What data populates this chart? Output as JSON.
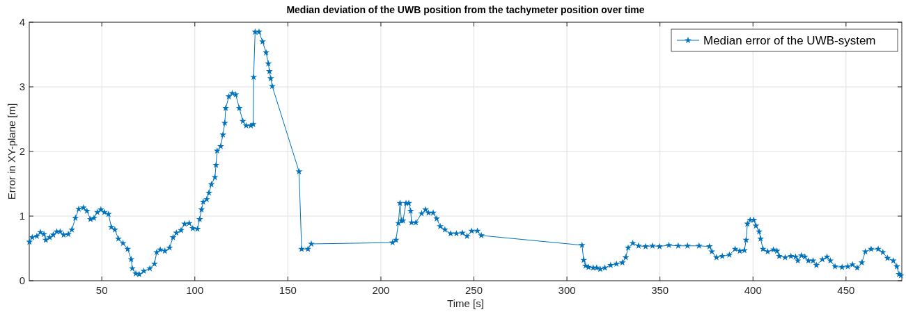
{
  "chart_data": {
    "type": "line",
    "title": "Median deviation of the UWB position from the tachymeter position over time",
    "xlabel": "Time [s]",
    "ylabel": "Error in XY-plane [m]",
    "xlim": [
      11,
      480
    ],
    "xticks": [
      50,
      100,
      150,
      200,
      250,
      300,
      350,
      400,
      450
    ],
    "ylim": [
      0,
      4
    ],
    "yticks": [
      0,
      1,
      2,
      3,
      4
    ],
    "grid": true,
    "legend": "top right",
    "marker": "star",
    "line_style": "solid",
    "series": [
      {
        "name": "Median error of the UWB-system",
        "color": "#0072bd",
        "x": [
          11.1,
          12.6,
          15.1,
          17,
          18.9,
          19.9,
          22,
          23.9,
          25.8,
          27.6,
          29.5,
          32,
          33.9,
          35.8,
          37.6,
          40.1,
          42,
          43.9,
          45.8,
          47.6,
          49.5,
          51.4,
          53.6,
          55.1,
          57,
          58.9,
          61.4,
          63.9,
          65.8,
          66.4,
          68.3,
          70.1,
          72.6,
          75.8,
          78.3,
          79.5,
          81.4,
          83.9,
          86.4,
          88.3,
          90.1,
          92.6,
          94.5,
          97,
          98.9,
          101.4,
          102.6,
          103.6,
          104.5,
          106.4,
          107.6,
          108.9,
          110.8,
          111.4,
          112,
          113.9,
          115.1,
          116.1,
          116.6,
          118.3,
          120.1,
          122,
          123.9,
          125.8,
          127.6,
          130.1,
          131.4,
          131.6,
          132.4,
          134.5,
          136.4,
          138.3,
          139.5,
          140.1,
          140.8,
          141.6,
          156,
          157.4,
          160.8,
          162.6,
          206.3,
          208.1,
          209.4,
          210.3,
          211,
          211.9,
          213.5,
          215,
          216,
          216.5,
          218.8,
          221.9,
          224,
          225.6,
          228.1,
          230,
          231.9,
          234.4,
          237.5,
          240.6,
          243.8,
          246.3,
          248.8,
          251.9,
          254,
          308.1,
          309,
          310,
          311.6,
          314.1,
          316,
          317.9,
          320.4,
          323.5,
          326.6,
          329.8,
          331.6,
          332.9,
          335.4,
          338.5,
          342.3,
          346,
          349.8,
          354.8,
          359.8,
          364.8,
          371,
          376.6,
          377.9,
          380.4,
          383.5,
          387.3,
          390.4,
          392.9,
          395.4,
          396.3,
          397,
          398.5,
          400.4,
          401.6,
          403.3,
          404.1,
          405.4,
          407.9,
          411,
          412.9,
          414.1,
          417.3,
          420.4,
          422.9,
          424.1,
          426,
          427.9,
          429.8,
          432.3,
          434.1,
          437.3,
          439.8,
          441.6,
          444.1,
          447.9,
          451,
          453.5,
          456,
          458.5,
          460.4,
          463.5,
          467.3,
          469.8,
          472.3,
          475.4,
          477.3,
          478.5,
          479.5
        ],
        "values": [
          0.6,
          0.67,
          0.69,
          0.75,
          0.72,
          0.63,
          0.67,
          0.71,
          0.76,
          0.76,
          0.71,
          0.72,
          0.79,
          0.97,
          1.11,
          1.13,
          1.08,
          0.95,
          0.97,
          1.06,
          1.1,
          1.06,
          1.03,
          0.83,
          0.79,
          0.65,
          0.58,
          0.49,
          0.33,
          0.19,
          0.11,
          0.1,
          0.15,
          0.19,
          0.26,
          0.44,
          0.48,
          0.46,
          0.51,
          0.67,
          0.74,
          0.78,
          0.88,
          0.89,
          0.81,
          0.8,
          0.95,
          1.1,
          1.22,
          1.26,
          1.36,
          1.49,
          1.6,
          1.79,
          2.01,
          2.08,
          2.26,
          2.44,
          2.67,
          2.85,
          2.9,
          2.88,
          2.67,
          2.47,
          2.4,
          2.4,
          2.42,
          3.15,
          3.85,
          3.85,
          3.7,
          3.53,
          3.36,
          3.24,
          3.13,
          3.01,
          1.69,
          0.49,
          0.49,
          0.57,
          0.59,
          0.63,
          0.89,
          1.2,
          0.93,
          0.93,
          1.2,
          1.2,
          1.08,
          0.9,
          0.9,
          1.04,
          1.1,
          1.05,
          1.05,
          0.96,
          0.84,
          0.79,
          0.73,
          0.73,
          0.74,
          0.69,
          0.77,
          0.77,
          0.7,
          0.55,
          0.32,
          0.23,
          0.21,
          0.2,
          0.2,
          0.18,
          0.2,
          0.24,
          0.26,
          0.28,
          0.36,
          0.51,
          0.58,
          0.54,
          0.53,
          0.54,
          0.53,
          0.55,
          0.54,
          0.54,
          0.54,
          0.53,
          0.45,
          0.36,
          0.38,
          0.4,
          0.49,
          0.46,
          0.47,
          0.63,
          0.88,
          0.94,
          0.94,
          0.85,
          0.76,
          0.65,
          0.49,
          0.45,
          0.48,
          0.46,
          0.38,
          0.36,
          0.38,
          0.37,
          0.31,
          0.39,
          0.37,
          0.31,
          0.31,
          0.24,
          0.33,
          0.37,
          0.31,
          0.22,
          0.21,
          0.22,
          0.25,
          0.2,
          0.28,
          0.45,
          0.49,
          0.49,
          0.44,
          0.35,
          0.31,
          0.22,
          0.1,
          0.08
        ]
      }
    ]
  }
}
